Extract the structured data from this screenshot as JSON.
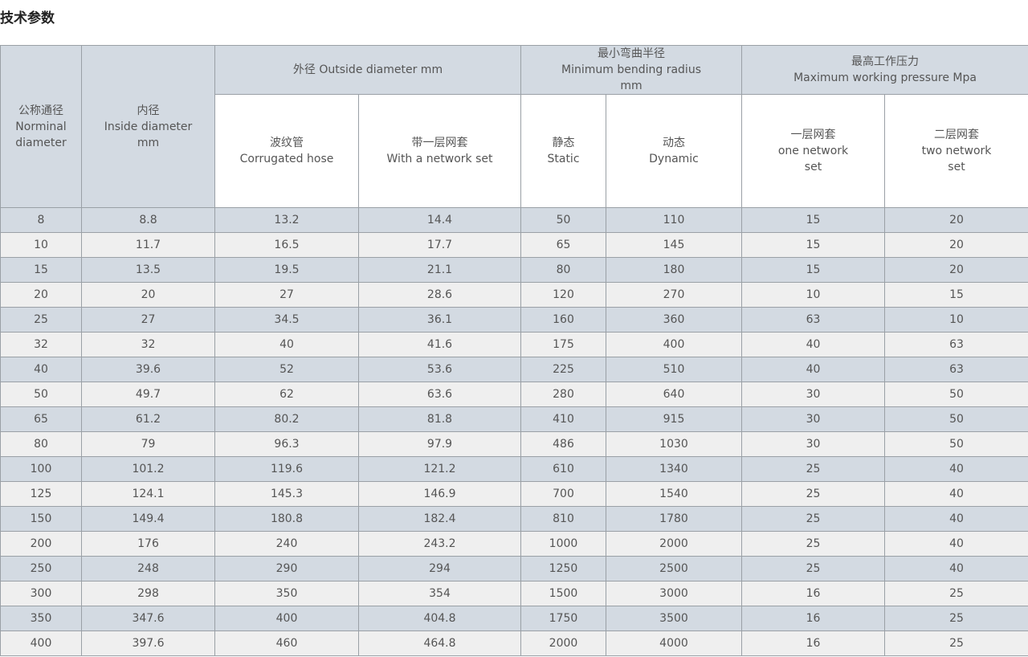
{
  "title": "技术参数",
  "table": {
    "header": [
      {
        "lines": [
          "公称通径",
          "Norminal",
          "diameter"
        ]
      },
      {
        "lines": [
          "内径",
          "Inside diameter",
          "mm"
        ]
      },
      {
        "lines": [
          "外径 Outside diameter mm"
        ]
      },
      {
        "lines": [
          "最小弯曲半径",
          "Minimum bending radius",
          "mm"
        ]
      },
      {
        "lines": [
          "最高工作压力",
          "Maximum working pressure Mpa"
        ]
      }
    ],
    "subheader": [
      {
        "lines": [
          "波纹管",
          "Corrugated hose"
        ]
      },
      {
        "lines": [
          "带一层网套",
          "With a network set"
        ]
      },
      {
        "lines": [
          "静态",
          "Static"
        ]
      },
      {
        "lines": [
          "动态",
          "Dynamic"
        ]
      },
      {
        "lines": [
          "一层网套",
          "one network",
          "set"
        ]
      },
      {
        "lines": [
          "二层网套",
          "two network",
          "set"
        ]
      }
    ],
    "rows": [
      [
        8,
        8.8,
        13.2,
        14.4,
        50,
        110,
        15,
        20
      ],
      [
        10,
        11.7,
        16.5,
        17.7,
        65,
        145,
        15,
        20
      ],
      [
        15,
        13.5,
        19.5,
        21.1,
        80,
        180,
        15,
        20
      ],
      [
        20,
        20,
        27,
        28.6,
        120,
        270,
        10,
        15
      ],
      [
        25,
        27,
        34.5,
        36.1,
        160,
        360,
        63,
        10
      ],
      [
        32,
        32,
        40,
        41.6,
        175,
        400,
        40,
        63
      ],
      [
        40,
        39.6,
        52,
        53.6,
        225,
        510,
        40,
        63
      ],
      [
        50,
        49.7,
        62,
        63.6,
        280,
        640,
        30,
        50
      ],
      [
        65,
        61.2,
        80.2,
        81.8,
        410,
        915,
        30,
        50
      ],
      [
        80,
        79,
        96.3,
        97.9,
        486,
        1030,
        30,
        50
      ],
      [
        100,
        101.2,
        119.6,
        121.2,
        610,
        1340,
        25,
        40
      ],
      [
        125,
        124.1,
        145.3,
        146.9,
        700,
        1540,
        25,
        40
      ],
      [
        150,
        149.4,
        180.8,
        182.4,
        810,
        1780,
        25,
        40
      ],
      [
        200,
        176,
        240,
        243.2,
        1000,
        2000,
        25,
        40
      ],
      [
        250,
        248,
        290,
        294,
        1250,
        2500,
        25,
        40
      ],
      [
        300,
        298,
        350,
        354,
        1500,
        3000,
        16,
        25
      ],
      [
        350,
        347.6,
        400,
        404.8,
        1750,
        3500,
        16,
        25
      ],
      [
        400,
        397.6,
        460,
        464.8,
        2000,
        4000,
        16,
        25
      ]
    ]
  }
}
